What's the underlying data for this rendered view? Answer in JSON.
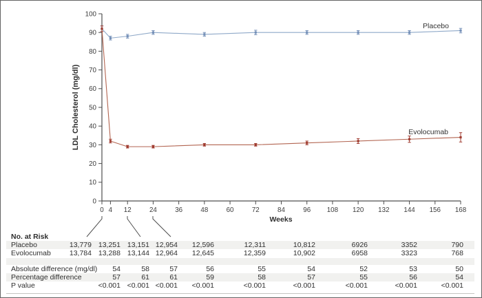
{
  "chart_data": {
    "type": "line",
    "title": "",
    "xlabel": "Weeks",
    "ylabel": "LDL Cholesterol (mg/dl)",
    "xlim": [
      0,
      168
    ],
    "ylim": [
      0,
      100
    ],
    "y_tick_step": 10,
    "x_ticks": [
      0,
      4,
      12,
      24,
      36,
      48,
      60,
      72,
      84,
      96,
      108,
      120,
      132,
      144,
      156,
      168
    ],
    "x": [
      0,
      4,
      12,
      24,
      48,
      72,
      96,
      120,
      144,
      168
    ],
    "grid": false,
    "legend": "inline-labels-at-line-end",
    "series": [
      {
        "name": "Placebo",
        "color": "#8ea8c8",
        "marker_color": "#7590b8",
        "values": [
          92,
          87,
          88,
          90,
          89,
          90,
          90,
          90,
          90,
          91
        ],
        "err": [
          1.5,
          1,
          1,
          1,
          1,
          1.2,
          1,
          1,
          1,
          1.2
        ]
      },
      {
        "name": "Evolocumab",
        "color": "#b26450",
        "marker_color": "#a03c31",
        "values": [
          92,
          32,
          29,
          29,
          30,
          30,
          31,
          32,
          33,
          34
        ],
        "err": [
          1.5,
          1,
          0.7,
          0.7,
          0.7,
          0.7,
          1,
          1.3,
          1.7,
          2.5
        ]
      }
    ]
  },
  "table": {
    "header": "No. at Risk",
    "rows": [
      {
        "label": "Placebo",
        "values": [
          "13,779",
          "13,251",
          "13,151",
          "12,954",
          "12,596",
          "12,311",
          "10,812",
          "6926",
          "3352",
          "790"
        ]
      },
      {
        "label": "Evolocumab",
        "values": [
          "13,784",
          "13,288",
          "13,144",
          "12,964",
          "12,645",
          "12,359",
          "10,902",
          "6958",
          "3323",
          "768"
        ]
      },
      {
        "label": "Absolute difference (mg/dl)",
        "values": [
          "",
          "54",
          "58",
          "57",
          "56",
          "55",
          "54",
          "52",
          "53",
          "50"
        ]
      },
      {
        "label": "Percentage difference",
        "values": [
          "",
          "57",
          "61",
          "61",
          "59",
          "58",
          "57",
          "55",
          "56",
          "54"
        ]
      },
      {
        "label": "P value",
        "values": [
          "",
          "<0.001",
          "<0.001",
          "<0.001",
          "<0.001",
          "<0.001",
          "<0.001",
          "<0.001",
          "<0.001",
          "<0.001"
        ]
      }
    ]
  },
  "colors": {
    "axis": "#4d4d4d",
    "tick_text": "#3c3c3c",
    "label_text": "#2e2e2e",
    "stripe": "#f1f1ef",
    "rule": "#c4c4c2",
    "border": "#636363"
  }
}
